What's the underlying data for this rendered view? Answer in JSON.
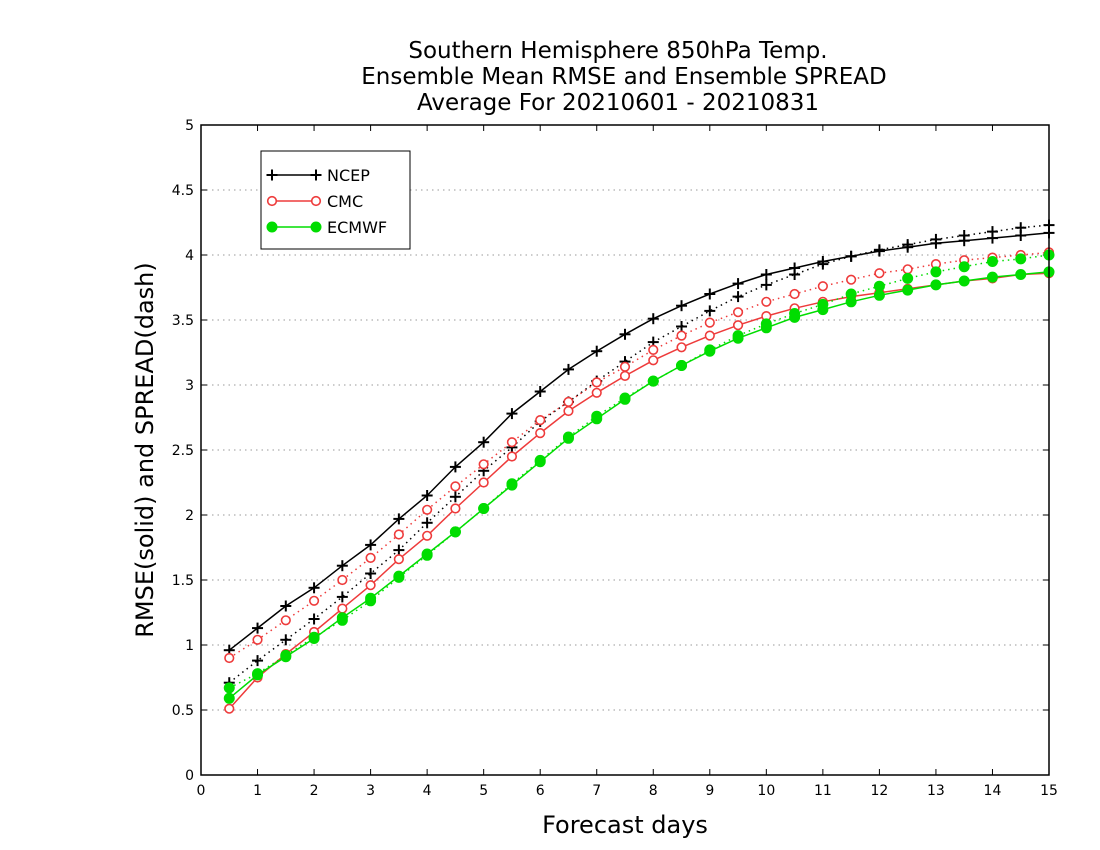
{
  "chart_data": {
    "type": "line",
    "title_lines": [
      "Southern Hemisphere 850hPa Temp.",
      "Ensemble Mean RMSE and Ensemble SPREAD",
      "Average For 20210601 - 20210831"
    ],
    "xlabel": "Forecast days",
    "ylabel": "RMSE(solid) and SPREAD(dash)",
    "xlim": [
      0,
      15
    ],
    "ylim": [
      0,
      5
    ],
    "x_ticks": [
      "0",
      "1",
      "2",
      "3",
      "4",
      "5",
      "6",
      "7",
      "8",
      "9",
      "10",
      "11",
      "12",
      "13",
      "14",
      "15"
    ],
    "y_ticks": [
      "0",
      "0.5",
      "1",
      "1.5",
      "2",
      "2.5",
      "3",
      "3.5",
      "4",
      "4.5",
      "5"
    ],
    "grid": "horizontal dotted",
    "legend_position": "top-left",
    "x": [
      0.5,
      1,
      1.5,
      2,
      2.5,
      3,
      3.5,
      4,
      4.5,
      5,
      5.5,
      6,
      6.5,
      7,
      7.5,
      8,
      8.5,
      9,
      9.5,
      10,
      10.5,
      11,
      11.5,
      12,
      12.5,
      13,
      13.5,
      14,
      14.5,
      15
    ],
    "series": [
      {
        "name": "NCEP",
        "color": "#000000",
        "marker": "plus",
        "rmse": [
          0.96,
          1.13,
          1.3,
          1.44,
          1.61,
          1.77,
          1.97,
          2.15,
          2.37,
          2.56,
          2.78,
          2.95,
          3.12,
          3.26,
          3.39,
          3.51,
          3.61,
          3.7,
          3.78,
          3.85,
          3.9,
          3.95,
          3.99,
          4.03,
          4.06,
          4.09,
          4.11,
          4.13,
          4.15,
          4.17
        ],
        "spread": [
          0.71,
          0.88,
          1.04,
          1.2,
          1.37,
          1.55,
          1.73,
          1.94,
          2.14,
          2.34,
          2.52,
          2.72,
          2.87,
          3.03,
          3.18,
          3.33,
          3.45,
          3.57,
          3.68,
          3.77,
          3.85,
          3.93,
          3.99,
          4.04,
          4.08,
          4.12,
          4.15,
          4.18,
          4.21,
          4.23
        ]
      },
      {
        "name": "CMC",
        "color": "#ee3b3b",
        "marker": "open-circle",
        "rmse": [
          0.51,
          0.75,
          0.93,
          1.1,
          1.28,
          1.46,
          1.66,
          1.84,
          2.05,
          2.25,
          2.45,
          2.63,
          2.8,
          2.94,
          3.07,
          3.19,
          3.29,
          3.38,
          3.46,
          3.53,
          3.59,
          3.64,
          3.68,
          3.71,
          3.74,
          3.77,
          3.8,
          3.82,
          3.85,
          3.86
        ],
        "spread": [
          0.9,
          1.04,
          1.19,
          1.34,
          1.5,
          1.67,
          1.85,
          2.04,
          2.22,
          2.39,
          2.56,
          2.73,
          2.87,
          3.02,
          3.14,
          3.27,
          3.38,
          3.48,
          3.56,
          3.64,
          3.7,
          3.76,
          3.81,
          3.86,
          3.89,
          3.93,
          3.96,
          3.98,
          4.0,
          4.02
        ]
      },
      {
        "name": "ECMWF",
        "color": "#00dd00",
        "marker": "filled-circle",
        "rmse": [
          0.59,
          0.77,
          0.91,
          1.05,
          1.21,
          1.36,
          1.53,
          1.7,
          1.87,
          2.05,
          2.23,
          2.41,
          2.59,
          2.74,
          2.89,
          3.03,
          3.15,
          3.26,
          3.36,
          3.44,
          3.52,
          3.58,
          3.64,
          3.69,
          3.73,
          3.77,
          3.8,
          3.83,
          3.85,
          3.87
        ],
        "spread": [
          0.67,
          0.78,
          0.92,
          1.06,
          1.19,
          1.34,
          1.52,
          1.69,
          1.87,
          2.05,
          2.24,
          2.42,
          2.6,
          2.76,
          2.9,
          3.03,
          3.15,
          3.27,
          3.38,
          3.47,
          3.55,
          3.62,
          3.7,
          3.76,
          3.82,
          3.87,
          3.91,
          3.95,
          3.97,
          4.0
        ]
      }
    ]
  }
}
